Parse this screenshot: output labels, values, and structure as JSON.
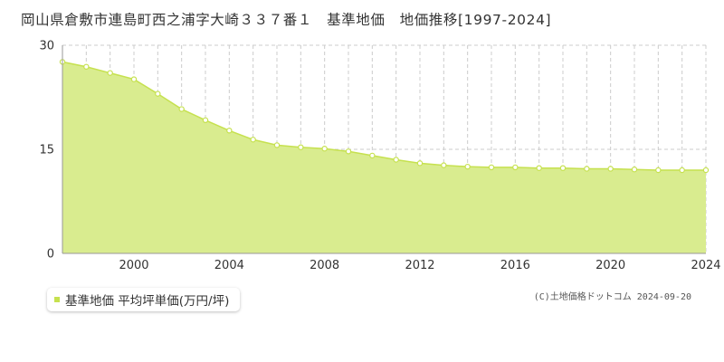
{
  "title": "岡山県倉敷市連島町西之浦字大崎３３７番１　基準地価　地価推移[1997-2024]",
  "credit": "(C)土地価格ドットコム 2024-09-20",
  "colors": {
    "fill": "#d9ec8f",
    "line": "#c6e14f",
    "marker_fill": "#ffffff",
    "grid": "#cccccc",
    "axis_text": "#333333"
  },
  "chart_data": {
    "type": "area",
    "title": "岡山県倉敷市連島町西之浦字大崎３３７番１　基準地価　地価推移[1997-2024]",
    "xlabel": "",
    "ylabel": "",
    "x": [
      1997,
      1998,
      1999,
      2000,
      2001,
      2002,
      2003,
      2004,
      2005,
      2006,
      2007,
      2008,
      2009,
      2010,
      2011,
      2012,
      2013,
      2014,
      2015,
      2016,
      2017,
      2018,
      2019,
      2020,
      2021,
      2022,
      2023,
      2024
    ],
    "xlim": [
      1997,
      2024
    ],
    "ylim": [
      0,
      30
    ],
    "x_ticks": [
      "2000",
      "2004",
      "2008",
      "2012",
      "2016",
      "2020",
      "2024"
    ],
    "x_tick_values": [
      2000,
      2004,
      2008,
      2012,
      2016,
      2020,
      2024
    ],
    "y_ticks": [
      "0",
      "15",
      "30"
    ],
    "y_tick_values": [
      0,
      15,
      30
    ],
    "grid": "vertical dashed yearly, horizontal dashed at 15",
    "legend_position": "bottom-left",
    "series": [
      {
        "name": "基準地価 平均坪単価(万円/坪)",
        "values": [
          27.6,
          26.9,
          26.0,
          25.1,
          23.0,
          20.8,
          19.2,
          17.7,
          16.4,
          15.6,
          15.3,
          15.1,
          14.7,
          14.1,
          13.5,
          13.0,
          12.7,
          12.5,
          12.4,
          12.4,
          12.3,
          12.3,
          12.2,
          12.2,
          12.1,
          12.0,
          12.0,
          12.0
        ]
      }
    ]
  }
}
